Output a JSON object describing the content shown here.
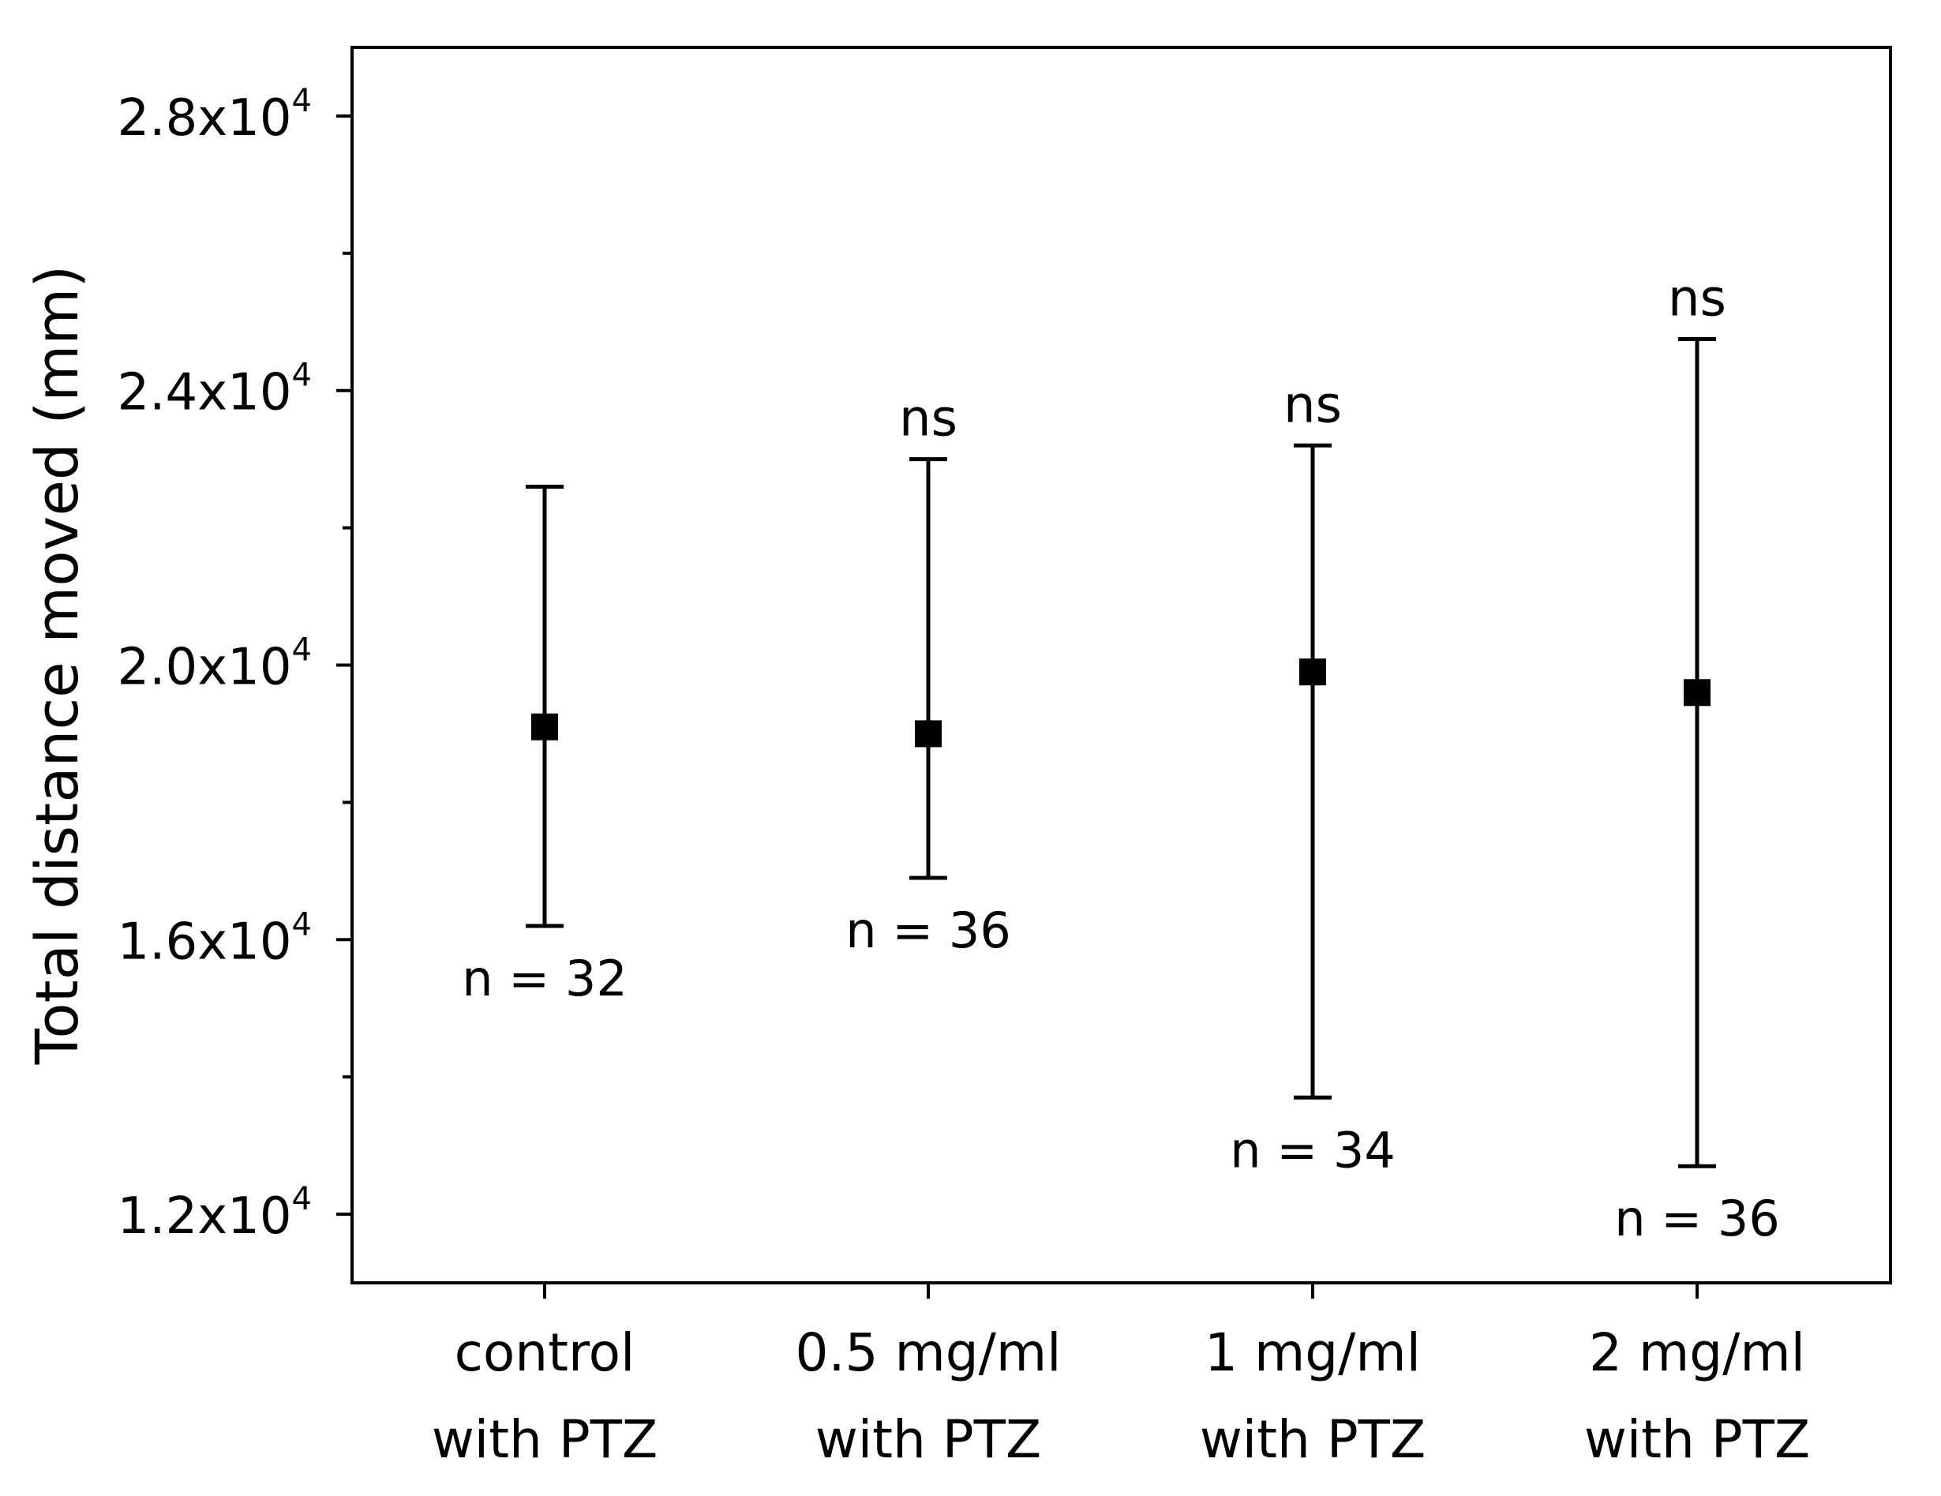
{
  "chart_data": {
    "type": "scatter",
    "subtype": "mean-with-error-bars",
    "title": "",
    "xlabel": "",
    "ylabel": "Total distance moved (mm)",
    "ylim": [
      11000,
      29000
    ],
    "yticks": [
      {
        "value": 12000,
        "mantissa": "1.2x10",
        "exponent": "4"
      },
      {
        "value": 16000,
        "mantissa": "1.6x10",
        "exponent": "4"
      },
      {
        "value": 20000,
        "mantissa": "2.0x10",
        "exponent": "4"
      },
      {
        "value": 24000,
        "mantissa": "2.4x10",
        "exponent": "4"
      },
      {
        "value": 28000,
        "mantissa": "2.8x10",
        "exponent": "4"
      }
    ],
    "minor_yticks": [
      14000,
      18000,
      22000,
      26000
    ],
    "grid": false,
    "categories": [
      {
        "line1": "control",
        "line2": "with PTZ"
      },
      {
        "line1": "0.5 mg/ml",
        "line2": "with PTZ"
      },
      {
        "line1": "1 mg/ml",
        "line2": "with PTZ"
      },
      {
        "line1": "2 mg/ml",
        "line2": "with PTZ"
      }
    ],
    "points": [
      {
        "mean": 19100,
        "upper": 22600,
        "lower": 16200,
        "n_label": "n = 32",
        "sig": ""
      },
      {
        "mean": 19000,
        "upper": 23000,
        "lower": 16900,
        "n_label": "n = 36",
        "sig": "ns"
      },
      {
        "mean": 19900,
        "upper": 23200,
        "lower": 13700,
        "n_label": "n = 34",
        "sig": "ns"
      },
      {
        "mean": 19600,
        "upper": 24750,
        "lower": 12700,
        "n_label": "n = 36",
        "sig": "ns"
      }
    ],
    "marker_color": "#000000",
    "line_color": "#000000"
  }
}
